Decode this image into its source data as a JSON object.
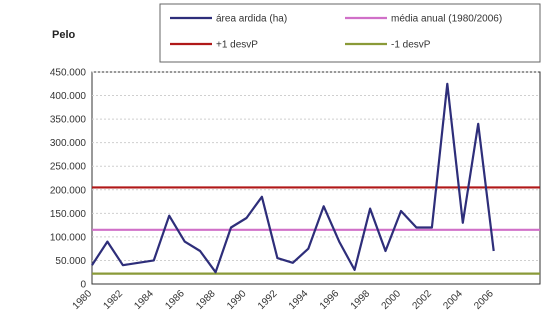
{
  "chart_data": {
    "type": "line",
    "title": "Pelo",
    "xlabel": "",
    "ylabel": "",
    "ylim": [
      0,
      450000
    ],
    "yticks": [
      0,
      50000,
      100000,
      150000,
      200000,
      250000,
      300000,
      350000,
      400000,
      450000
    ],
    "ytick_labels": [
      "0",
      "50.000",
      "100.000",
      "150.000",
      "200.000",
      "250.000",
      "300.000",
      "350.000",
      "400.000",
      "450.000"
    ],
    "xlim": [
      1980,
      2009
    ],
    "x_tick_labels": [
      "1980",
      "1982",
      "1984",
      "1986",
      "1988",
      "1990",
      "1992",
      "1994",
      "1996",
      "1998",
      "2000",
      "2002",
      "2004",
      "2006"
    ],
    "grid": true,
    "legend_position": "top",
    "series": [
      {
        "name": "área ardida (ha)",
        "color": "#2e2e7a",
        "x": [
          1980,
          1981,
          1982,
          1983,
          1984,
          1985,
          1986,
          1987,
          1988,
          1989,
          1990,
          1991,
          1992,
          1993,
          1994,
          1995,
          1996,
          1997,
          1998,
          1999,
          2000,
          2001,
          2002,
          2003,
          2004,
          2005,
          2006,
          2007,
          2008,
          2009
        ],
        "values": [
          40000,
          90000,
          40000,
          45000,
          50000,
          145000,
          90000,
          70000,
          25000,
          120000,
          140000,
          185000,
          55000,
          45000,
          75000,
          165000,
          90000,
          30000,
          160000,
          70000,
          155000,
          120000,
          120000,
          425000,
          130000,
          340000,
          70000,
          null,
          null,
          null
        ]
      }
    ],
    "reference_lines": [
      {
        "name": "média anual (1980/2006)",
        "value": 115000,
        "color": "#d070c8"
      },
      {
        "name": "+1 desvP",
        "value": 205000,
        "color": "#b01818"
      },
      {
        "name": "-1 desvP",
        "value": 22000,
        "color": "#8a9a38"
      }
    ]
  }
}
